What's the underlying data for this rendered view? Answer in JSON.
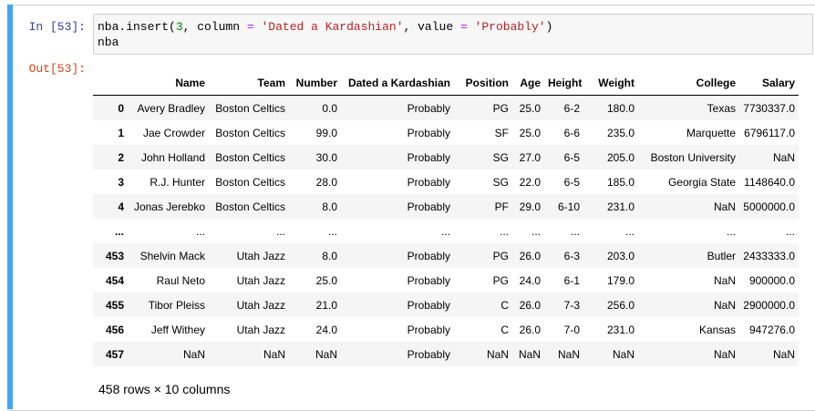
{
  "cell": {
    "in_prompt": "In [53]:",
    "out_prompt": "Out[53]:",
    "code_tokens": [
      {
        "t": "nba.insert(",
        "c": ""
      },
      {
        "t": "3",
        "c": "cm-number"
      },
      {
        "t": ", column ",
        "c": ""
      },
      {
        "t": "=",
        "c": "cm-op"
      },
      {
        "t": " ",
        "c": ""
      },
      {
        "t": "'Dated a Kardashian'",
        "c": "cm-string"
      },
      {
        "t": ", value ",
        "c": ""
      },
      {
        "t": "=",
        "c": "cm-op"
      },
      {
        "t": " ",
        "c": ""
      },
      {
        "t": "'Probably'",
        "c": "cm-string"
      },
      {
        "t": ")",
        "c": ""
      },
      {
        "t": "\n",
        "c": ""
      },
      {
        "t": "nba",
        "c": ""
      }
    ]
  },
  "table": {
    "index_header": "",
    "columns": [
      "Name",
      "Team",
      "Number",
      "Dated a Kardashian",
      "Position",
      "Age",
      "Height",
      "Weight",
      "College",
      "Salary"
    ],
    "rows": [
      {
        "index": "0",
        "cells": [
          "Avery Bradley",
          "Boston Celtics",
          "0.0",
          "Probably",
          "PG",
          "25.0",
          "6-2",
          "180.0",
          "Texas",
          "7730337.0"
        ]
      },
      {
        "index": "1",
        "cells": [
          "Jae Crowder",
          "Boston Celtics",
          "99.0",
          "Probably",
          "SF",
          "25.0",
          "6-6",
          "235.0",
          "Marquette",
          "6796117.0"
        ]
      },
      {
        "index": "2",
        "cells": [
          "John Holland",
          "Boston Celtics",
          "30.0",
          "Probably",
          "SG",
          "27.0",
          "6-5",
          "205.0",
          "Boston University",
          "NaN"
        ]
      },
      {
        "index": "3",
        "cells": [
          "R.J. Hunter",
          "Boston Celtics",
          "28.0",
          "Probably",
          "SG",
          "22.0",
          "6-5",
          "185.0",
          "Georgia State",
          "1148640.0"
        ]
      },
      {
        "index": "4",
        "cells": [
          "Jonas Jerebko",
          "Boston Celtics",
          "8.0",
          "Probably",
          "PF",
          "29.0",
          "6-10",
          "231.0",
          "NaN",
          "5000000.0"
        ]
      },
      {
        "index": "...",
        "cells": [
          "...",
          "...",
          "...",
          "...",
          "...",
          "...",
          "...",
          "...",
          "...",
          "..."
        ]
      },
      {
        "index": "453",
        "cells": [
          "Shelvin Mack",
          "Utah Jazz",
          "8.0",
          "Probably",
          "PG",
          "26.0",
          "6-3",
          "203.0",
          "Butler",
          "2433333.0"
        ]
      },
      {
        "index": "454",
        "cells": [
          "Raul Neto",
          "Utah Jazz",
          "25.0",
          "Probably",
          "PG",
          "24.0",
          "6-1",
          "179.0",
          "NaN",
          "900000.0"
        ]
      },
      {
        "index": "455",
        "cells": [
          "Tibor Pleiss",
          "Utah Jazz",
          "21.0",
          "Probably",
          "C",
          "26.0",
          "7-3",
          "256.0",
          "NaN",
          "2900000.0"
        ]
      },
      {
        "index": "456",
        "cells": [
          "Jeff Withey",
          "Utah Jazz",
          "24.0",
          "Probably",
          "C",
          "26.0",
          "7-0",
          "231.0",
          "Kansas",
          "947276.0"
        ]
      },
      {
        "index": "457",
        "cells": [
          "NaN",
          "NaN",
          "NaN",
          "Probably",
          "NaN",
          "NaN",
          "NaN",
          "NaN",
          "NaN",
          "NaN"
        ]
      }
    ],
    "summary": "458 rows × 10 columns"
  },
  "colors": {
    "selected_bar": "#42a5f5",
    "in_prompt": "#303f9f",
    "out_prompt": "#d84315",
    "stripe": "#f5f5f5"
  }
}
